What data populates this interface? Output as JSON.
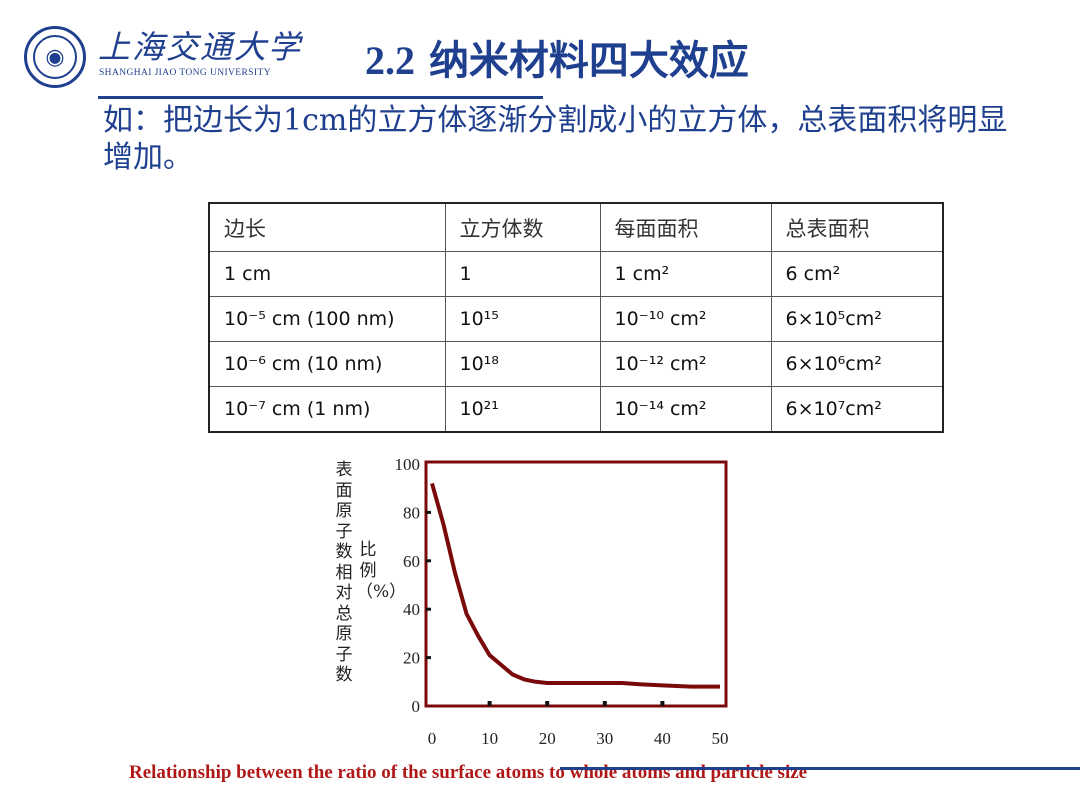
{
  "header": {
    "university_cn": "上海交通大学",
    "university_en": "SHANGHAI JIAO TONG UNIVERSITY",
    "title_number": "2.2",
    "title_text": "纳米材料四大效应"
  },
  "intro_text": "如：把边长为1cm的立方体逐渐分割成小的立方体，总表面积将明显增加。",
  "table": {
    "headers": [
      "边长",
      "立方体数",
      "每面面积",
      "总表面积"
    ],
    "rows": [
      {
        "edge": "1 cm",
        "count": "1",
        "face_area": "1 cm²",
        "total_area": "6 cm²"
      },
      {
        "edge": "10⁻⁵ cm (100 nm)",
        "count": "10¹⁵",
        "face_area": "10⁻¹⁰ cm²",
        "total_area": "6×10⁵cm²"
      },
      {
        "edge": "10⁻⁶ cm (10 nm)",
        "count": "10¹⁸",
        "face_area": "10⁻¹² cm²",
        "total_area": "6×10⁶cm²"
      },
      {
        "edge": "10⁻⁷ cm (1 nm)",
        "count": "10²¹",
        "face_area": "10⁻¹⁴ cm²",
        "total_area": "6×10⁷cm²"
      }
    ]
  },
  "chart_data": {
    "type": "line",
    "ylabel_part1": "表面原子数相对总原子数",
    "ylabel_part2": "比例（%）",
    "xlabel": "",
    "title": "",
    "xlim": [
      0,
      50
    ],
    "ylim": [
      0,
      100
    ],
    "x_ticks": [
      "0",
      "10",
      "20",
      "30",
      "40",
      "50"
    ],
    "y_ticks": [
      "0",
      "20",
      "40",
      "60",
      "80",
      "100"
    ],
    "line_color": "#7a0a0a",
    "series": [
      {
        "x": [
          0,
          2,
          4,
          6,
          8,
          10,
          12,
          14,
          16,
          18,
          20,
          25,
          30,
          33,
          36,
          40,
          45,
          50
        ],
        "y": [
          92,
          75,
          55,
          38,
          29,
          21,
          17,
          13,
          11,
          10,
          9.5,
          9.5,
          9.5,
          9.5,
          9,
          8.5,
          8,
          8
        ]
      }
    ]
  },
  "caption": "Relationship between the ratio of the surface atoms to whole atoms and particle size"
}
